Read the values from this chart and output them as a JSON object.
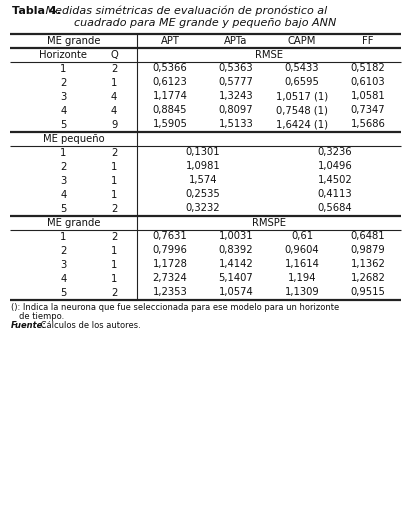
{
  "title_bold": "Tabla 4.",
  "title_italic_line1": " Medidas simétricas de evaluación de pronóstico al",
  "title_italic_line2": "cuadrado para ME grande y pequeño bajo ANN",
  "rmse_label": "RMSE",
  "rmspe_label": "RMSPE",
  "me_grande_rmse": [
    [
      "1",
      "2",
      "0,5366",
      "0,5363",
      "0,5433",
      "0,5182"
    ],
    [
      "2",
      "1",
      "0,6123",
      "0,5777",
      "0,6595",
      "0,6103"
    ],
    [
      "3",
      "4",
      "1,1774",
      "1,3243",
      "1,0517 (1)",
      "1,0581"
    ],
    [
      "4",
      "4",
      "0,8845",
      "0,8097",
      "0,7548 (1)",
      "0,7347"
    ],
    [
      "5",
      "9",
      "1,5905",
      "1,5133",
      "1,6424 (1)",
      "1,5686"
    ]
  ],
  "me_pequeno_header": "ME pequeño",
  "me_pequeno_rows": [
    [
      "1",
      "2",
      "0,1301",
      "0,3236"
    ],
    [
      "2",
      "1",
      "1,0981",
      "1,0496"
    ],
    [
      "3",
      "1",
      "1,574",
      "1,4502"
    ],
    [
      "4",
      "1",
      "0,2535",
      "0,4113"
    ],
    [
      "5",
      "2",
      "0,3232",
      "0,5684"
    ]
  ],
  "me_grande_rmspe_header": "ME grande",
  "me_grande_rmspe": [
    [
      "1",
      "2",
      "0,7631",
      "1,0031",
      "0,61",
      "0,6481"
    ],
    [
      "2",
      "1",
      "0,7996",
      "0,8392",
      "0,9604",
      "0,9879"
    ],
    [
      "3",
      "1",
      "1,1728",
      "1,4142",
      "1,1614",
      "1,1362"
    ],
    [
      "4",
      "1",
      "2,7324",
      "5,1407",
      "1,194",
      "1,2682"
    ],
    [
      "5",
      "2",
      "1,2353",
      "1,0574",
      "1,1309",
      "0,9515"
    ]
  ],
  "footnote_line1": "(): Indica la neurona que fue seleccionada para ese modelo para un horizonte",
  "footnote_line2": "de tiempo.",
  "footnote_source_bold": "Fuente:",
  "footnote_source_rest": " Cálculos de los autores.",
  "bg_color": "#ffffff"
}
